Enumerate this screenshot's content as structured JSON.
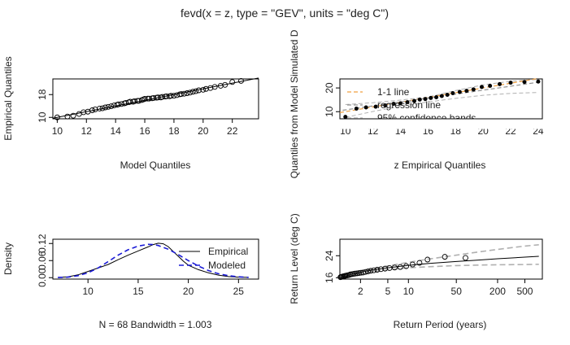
{
  "figure": {
    "title": "fevd(x = z, type = \"GEV\", units = \"deg C\")"
  },
  "chart_data": [
    {
      "id": "qq",
      "type": "scatter",
      "xlabel": "Model Quantiles",
      "ylabel": "Empirical Quantiles",
      "xlim": [
        9.7,
        23.8
      ],
      "ylim": [
        9.5,
        23.5
      ],
      "xticks": [
        10,
        12,
        14,
        16,
        18,
        20,
        22
      ],
      "yticks": [
        10,
        18
      ],
      "series": [
        {
          "kind": "points",
          "x": [
            10.0,
            10.7,
            11.1,
            11.5,
            11.8,
            12.1,
            12.4,
            12.6,
            12.9,
            13.1,
            13.3,
            13.5,
            13.7,
            13.9,
            14.1,
            14.2,
            14.4,
            14.6,
            14.7,
            14.9,
            15.0,
            15.2,
            15.3,
            15.5,
            15.6,
            15.8,
            15.9,
            16.0,
            16.2,
            16.3,
            16.5,
            16.6,
            16.8,
            16.9,
            17.1,
            17.2,
            17.4,
            17.5,
            17.7,
            17.8,
            18.0,
            18.2,
            18.4,
            18.5,
            18.7,
            18.9,
            19.1,
            19.3,
            19.5,
            19.7,
            20.0,
            20.2,
            20.5,
            20.8,
            21.2,
            21.5,
            22.0,
            22.6
          ],
          "y": [
            10.0,
            10.3,
            10.6,
            11.2,
            11.8,
            12.0,
            12.5,
            12.8,
            13.1,
            13.2,
            13.5,
            13.7,
            13.9,
            14.2,
            14.4,
            14.6,
            14.7,
            14.9,
            15.1,
            15.3,
            15.5,
            15.5,
            15.7,
            15.8,
            15.8,
            16.1,
            16.3,
            16.5,
            16.6,
            16.6,
            16.7,
            16.8,
            16.9,
            17.0,
            17.0,
            17.2,
            17.3,
            17.4,
            17.4,
            17.6,
            17.6,
            17.8,
            18.1,
            18.2,
            18.3,
            18.5,
            18.7,
            19.0,
            19.2,
            19.5,
            19.7,
            20.0,
            20.3,
            20.7,
            21.1,
            21.4,
            22.4,
            22.8
          ]
        },
        {
          "kind": "line",
          "x": [
            9.7,
            23.8
          ],
          "y": [
            9.7,
            23.8
          ]
        }
      ]
    },
    {
      "id": "simqq",
      "type": "scatter",
      "xlabel": "z Empirical Quantiles",
      "ylabel": "Quantiles from Model Simulated D",
      "xlim": [
        9.6,
        24.3
      ],
      "ylim": [
        7.0,
        23.8
      ],
      "xticks": [
        10,
        12,
        14,
        16,
        18,
        20,
        22,
        24
      ],
      "yticks": [
        10,
        20
      ],
      "legend": {
        "position": "top-left",
        "entries": [
          "1-1 line",
          "regression line",
          "95% confidence bands"
        ]
      },
      "colors": {
        "one_to_one": "#f0a040",
        "regression": "#909090",
        "bands": "#b0b0b0"
      },
      "series": [
        {
          "kind": "points",
          "x": [
            10.0,
            10.8,
            11.5,
            12.2,
            12.9,
            13.5,
            14.0,
            14.5,
            15.0,
            15.4,
            15.8,
            16.2,
            16.6,
            17.0,
            17.4,
            17.8,
            18.3,
            18.8,
            19.3,
            19.9,
            20.5,
            21.2,
            22.0,
            23.0,
            24.0
          ],
          "y": [
            7.8,
            11.3,
            11.8,
            12.1,
            12.6,
            13.3,
            13.5,
            14.0,
            14.5,
            15.1,
            15.3,
            15.8,
            16.1,
            16.6,
            17.1,
            17.8,
            18.3,
            18.8,
            19.4,
            20.4,
            20.9,
            21.6,
            22.2,
            22.5,
            22.7
          ]
        },
        {
          "kind": "one_to_one",
          "x": [
            9.6,
            23.9
          ],
          "y": [
            9.6,
            23.9
          ]
        },
        {
          "kind": "regression",
          "x": [
            9.8,
            24.0
          ],
          "y": [
            10.6,
            22.4
          ]
        },
        {
          "kind": "upper_band",
          "x": [
            10.0,
            12.0,
            14.0,
            16.0,
            18.0,
            20.0,
            22.0,
            24.0
          ],
          "y": [
            13.0,
            13.8,
            14.9,
            16.2,
            18.9,
            21.3,
            22.8,
            23.6
          ]
        },
        {
          "kind": "lower_band",
          "x": [
            10.0,
            12.0,
            14.0,
            16.0,
            18.0,
            20.0,
            22.0,
            24.0
          ],
          "y": [
            7.6,
            10.1,
            12.3,
            14.1,
            15.6,
            16.9,
            17.7,
            18.1
          ]
        }
      ]
    },
    {
      "id": "density",
      "type": "line",
      "xlabel": "N = 68   Bandwidth = 1.003",
      "ylabel": "Density",
      "xlim": [
        6.5,
        27.0
      ],
      "ylim": [
        -0.005,
        0.135
      ],
      "xticks": [
        10,
        15,
        20,
        25
      ],
      "yticks": [
        0.0,
        0.06,
        0.12
      ],
      "ytick_labels": [
        "0.00",
        "0.06",
        "0.12"
      ],
      "legend": {
        "position": "top-right",
        "entries": [
          "Empirical",
          "Modeled"
        ]
      },
      "colors": {
        "empirical": "#000000",
        "modeled": "#1a1ad6"
      },
      "series": [
        {
          "name": "Empirical",
          "x": [
            7.0,
            8.0,
            9.0,
            10.0,
            11.0,
            12.0,
            13.0,
            14.0,
            15.0,
            16.0,
            16.5,
            17.0,
            17.5,
            18.0,
            18.5,
            19.0,
            19.5,
            20.0,
            21.0,
            22.0,
            23.0,
            24.0,
            25.0,
            26.0
          ],
          "y": [
            0.001,
            0.003,
            0.01,
            0.022,
            0.034,
            0.046,
            0.063,
            0.079,
            0.094,
            0.108,
            0.116,
            0.121,
            0.119,
            0.109,
            0.092,
            0.075,
            0.058,
            0.044,
            0.028,
            0.017,
            0.009,
            0.004,
            0.002,
            0.001
          ]
        },
        {
          "name": "Modeled",
          "x": [
            7.0,
            8.0,
            9.0,
            10.0,
            11.0,
            12.0,
            13.0,
            14.0,
            15.0,
            16.0,
            16.5,
            17.0,
            18.0,
            19.0,
            20.0,
            21.0,
            22.0,
            23.0,
            24.0,
            25.0,
            26.0
          ],
          "y": [
            0.0005,
            0.002,
            0.007,
            0.017,
            0.034,
            0.056,
            0.079,
            0.098,
            0.111,
            0.117,
            0.116,
            0.113,
            0.1,
            0.081,
            0.06,
            0.041,
            0.025,
            0.014,
            0.007,
            0.003,
            0.001
          ]
        }
      ]
    },
    {
      "id": "returnlevel",
      "type": "line",
      "xlabel": "Return Period (years)",
      "ylabel": "Return Level (deg C)",
      "xscale": "log",
      "xlim": [
        1.0,
        900
      ],
      "ylim": [
        15.5,
        30.0
      ],
      "xticks": [
        2,
        5,
        10,
        50,
        200,
        500
      ],
      "yticks": [
        16,
        24
      ],
      "series": [
        {
          "kind": "points",
          "x": [
            1.02,
            1.05,
            1.08,
            1.12,
            1.16,
            1.2,
            1.25,
            1.3,
            1.36,
            1.42,
            1.5,
            1.58,
            1.67,
            1.78,
            1.9,
            2.03,
            2.18,
            2.36,
            2.57,
            2.82,
            3.13,
            3.5,
            3.97,
            4.56,
            5.3,
            6.3,
            7.6,
            9.3,
            11.5,
            14.5,
            19.0,
            34.0,
            68.0
          ],
          "y": [
            16.2,
            16.3,
            16.4,
            16.5,
            16.6,
            16.7,
            16.8,
            16.9,
            17.0,
            17.2,
            17.3,
            17.4,
            17.5,
            17.6,
            17.7,
            17.8,
            17.9,
            18.1,
            18.3,
            18.5,
            18.7,
            18.9,
            19.1,
            19.3,
            19.5,
            19.7,
            19.9,
            20.2,
            20.8,
            21.4,
            22.6,
            23.6,
            23.2
          ]
        },
        {
          "kind": "estimate",
          "x": [
            1.0,
            1.5,
            2.0,
            3.0,
            5.0,
            10.0,
            20.0,
            50.0,
            100.0,
            200.0,
            500.0,
            800.0
          ],
          "y": [
            15.8,
            17.3,
            18.0,
            18.8,
            19.6,
            20.5,
            21.2,
            21.9,
            22.4,
            22.9,
            23.5,
            23.8
          ]
        },
        {
          "kind": "upper_ci",
          "x": [
            1.0,
            2.0,
            5.0,
            10.0,
            20.0,
            50.0,
            100.0,
            200.0,
            500.0,
            800.0
          ],
          "y": [
            16.2,
            18.5,
            20.3,
            21.6,
            22.8,
            24.2,
            25.3,
            26.3,
            27.5,
            28.0
          ]
        },
        {
          "kind": "lower_ci",
          "x": [
            1.0,
            2.0,
            5.0,
            10.0,
            20.0,
            50.0,
            100.0,
            200.0,
            500.0,
            800.0
          ],
          "y": [
            15.4,
            17.5,
            18.9,
            19.6,
            20.0,
            20.4,
            20.6,
            20.7,
            20.8,
            20.9
          ]
        }
      ]
    }
  ]
}
